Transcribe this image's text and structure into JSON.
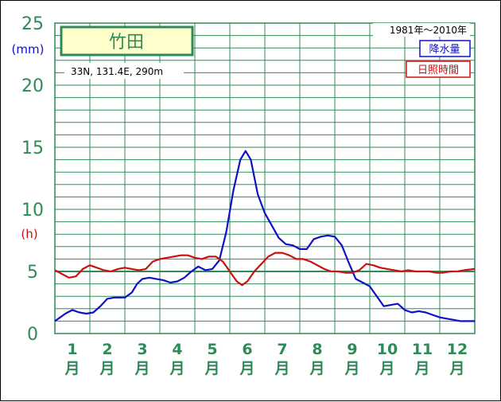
{
  "colors": {
    "grid": "#2e8b57",
    "precip": "#1010c8",
    "sunshine": "#cc1010",
    "station_box_fill": "#ffffcc"
  },
  "chart_data": {
    "type": "line",
    "station": {
      "name": "竹田",
      "location": "33N, 131.4E, 290m",
      "period": "1981年〜2010年"
    },
    "legend": {
      "precip_label": "降水量",
      "sunshine_label": "日照時間",
      "placement": "top-right"
    },
    "y_axis": {
      "ticks": [
        0,
        5,
        10,
        15,
        20,
        25
      ],
      "range": [
        0,
        25
      ],
      "unit_top": "(mm)",
      "unit_mid": "(h)"
    },
    "x_axis": {
      "months": [
        "1",
        "2",
        "3",
        "4",
        "5",
        "6",
        "7",
        "8",
        "9",
        "10",
        "11",
        "12"
      ],
      "month_suffix": "月",
      "range": [
        0.5,
        12.5
      ]
    },
    "series": [
      {
        "name": "降水量",
        "unit": "mm",
        "points": [
          [
            0.5,
            1.0
          ],
          [
            0.6,
            1.2
          ],
          [
            0.8,
            1.6
          ],
          [
            1.0,
            1.9
          ],
          [
            1.2,
            1.7
          ],
          [
            1.4,
            1.6
          ],
          [
            1.6,
            1.7
          ],
          [
            1.8,
            2.2
          ],
          [
            2.0,
            2.8
          ],
          [
            2.2,
            2.9
          ],
          [
            2.5,
            2.9
          ],
          [
            2.7,
            3.3
          ],
          [
            2.85,
            4.0
          ],
          [
            3.0,
            4.4
          ],
          [
            3.2,
            4.5
          ],
          [
            3.4,
            4.4
          ],
          [
            3.6,
            4.3
          ],
          [
            3.8,
            4.1
          ],
          [
            4.0,
            4.2
          ],
          [
            4.2,
            4.5
          ],
          [
            4.4,
            5.0
          ],
          [
            4.6,
            5.4
          ],
          [
            4.8,
            5.1
          ],
          [
            5.0,
            5.2
          ],
          [
            5.2,
            5.9
          ],
          [
            5.4,
            8.2
          ],
          [
            5.6,
            11.5
          ],
          [
            5.8,
            14.0
          ],
          [
            5.95,
            14.7
          ],
          [
            6.1,
            14.0
          ],
          [
            6.3,
            11.2
          ],
          [
            6.5,
            9.7
          ],
          [
            6.7,
            8.7
          ],
          [
            6.9,
            7.7
          ],
          [
            7.1,
            7.2
          ],
          [
            7.3,
            7.1
          ],
          [
            7.5,
            6.8
          ],
          [
            7.7,
            6.8
          ],
          [
            7.9,
            7.6
          ],
          [
            8.1,
            7.8
          ],
          [
            8.3,
            7.9
          ],
          [
            8.5,
            7.8
          ],
          [
            8.7,
            7.1
          ],
          [
            8.9,
            5.7
          ],
          [
            9.1,
            4.4
          ],
          [
            9.3,
            4.1
          ],
          [
            9.5,
            3.8
          ],
          [
            9.7,
            3.0
          ],
          [
            9.9,
            2.2
          ],
          [
            10.1,
            2.3
          ],
          [
            10.3,
            2.4
          ],
          [
            10.5,
            1.9
          ],
          [
            10.7,
            1.7
          ],
          [
            10.9,
            1.8
          ],
          [
            11.1,
            1.7
          ],
          [
            11.3,
            1.5
          ],
          [
            11.5,
            1.3
          ],
          [
            11.7,
            1.2
          ],
          [
            11.9,
            1.1
          ],
          [
            12.1,
            1.0
          ],
          [
            12.3,
            1.0
          ],
          [
            12.5,
            1.0
          ]
        ]
      },
      {
        "name": "日照時間",
        "unit": "h",
        "points": [
          [
            0.5,
            5.1
          ],
          [
            0.7,
            4.8
          ],
          [
            0.9,
            4.5
          ],
          [
            1.1,
            4.6
          ],
          [
            1.3,
            5.2
          ],
          [
            1.5,
            5.5
          ],
          [
            1.7,
            5.3
          ],
          [
            1.9,
            5.1
          ],
          [
            2.1,
            5.0
          ],
          [
            2.3,
            5.2
          ],
          [
            2.5,
            5.3
          ],
          [
            2.7,
            5.2
          ],
          [
            2.9,
            5.1
          ],
          [
            3.1,
            5.2
          ],
          [
            3.3,
            5.8
          ],
          [
            3.5,
            6.0
          ],
          [
            3.7,
            6.1
          ],
          [
            3.9,
            6.2
          ],
          [
            4.1,
            6.3
          ],
          [
            4.3,
            6.3
          ],
          [
            4.5,
            6.1
          ],
          [
            4.7,
            6.0
          ],
          [
            4.9,
            6.2
          ],
          [
            5.1,
            6.2
          ],
          [
            5.3,
            5.8
          ],
          [
            5.5,
            5.0
          ],
          [
            5.7,
            4.2
          ],
          [
            5.85,
            3.9
          ],
          [
            6.0,
            4.2
          ],
          [
            6.2,
            5.0
          ],
          [
            6.4,
            5.6
          ],
          [
            6.6,
            6.2
          ],
          [
            6.8,
            6.5
          ],
          [
            7.0,
            6.5
          ],
          [
            7.2,
            6.3
          ],
          [
            7.4,
            6.0
          ],
          [
            7.6,
            6.0
          ],
          [
            7.8,
            5.8
          ],
          [
            8.0,
            5.5
          ],
          [
            8.2,
            5.2
          ],
          [
            8.4,
            5.0
          ],
          [
            8.6,
            5.0
          ],
          [
            8.8,
            4.9
          ],
          [
            9.0,
            4.9
          ],
          [
            9.2,
            5.1
          ],
          [
            9.4,
            5.6
          ],
          [
            9.6,
            5.5
          ],
          [
            9.8,
            5.3
          ],
          [
            10.0,
            5.2
          ],
          [
            10.2,
            5.1
          ],
          [
            10.4,
            5.0
          ],
          [
            10.6,
            5.1
          ],
          [
            10.8,
            5.0
          ],
          [
            11.0,
            5.0
          ],
          [
            11.2,
            5.0
          ],
          [
            11.4,
            4.9
          ],
          [
            11.6,
            4.9
          ],
          [
            11.8,
            5.0
          ],
          [
            12.0,
            5.0
          ],
          [
            12.2,
            5.1
          ],
          [
            12.5,
            5.2
          ]
        ]
      }
    ]
  }
}
